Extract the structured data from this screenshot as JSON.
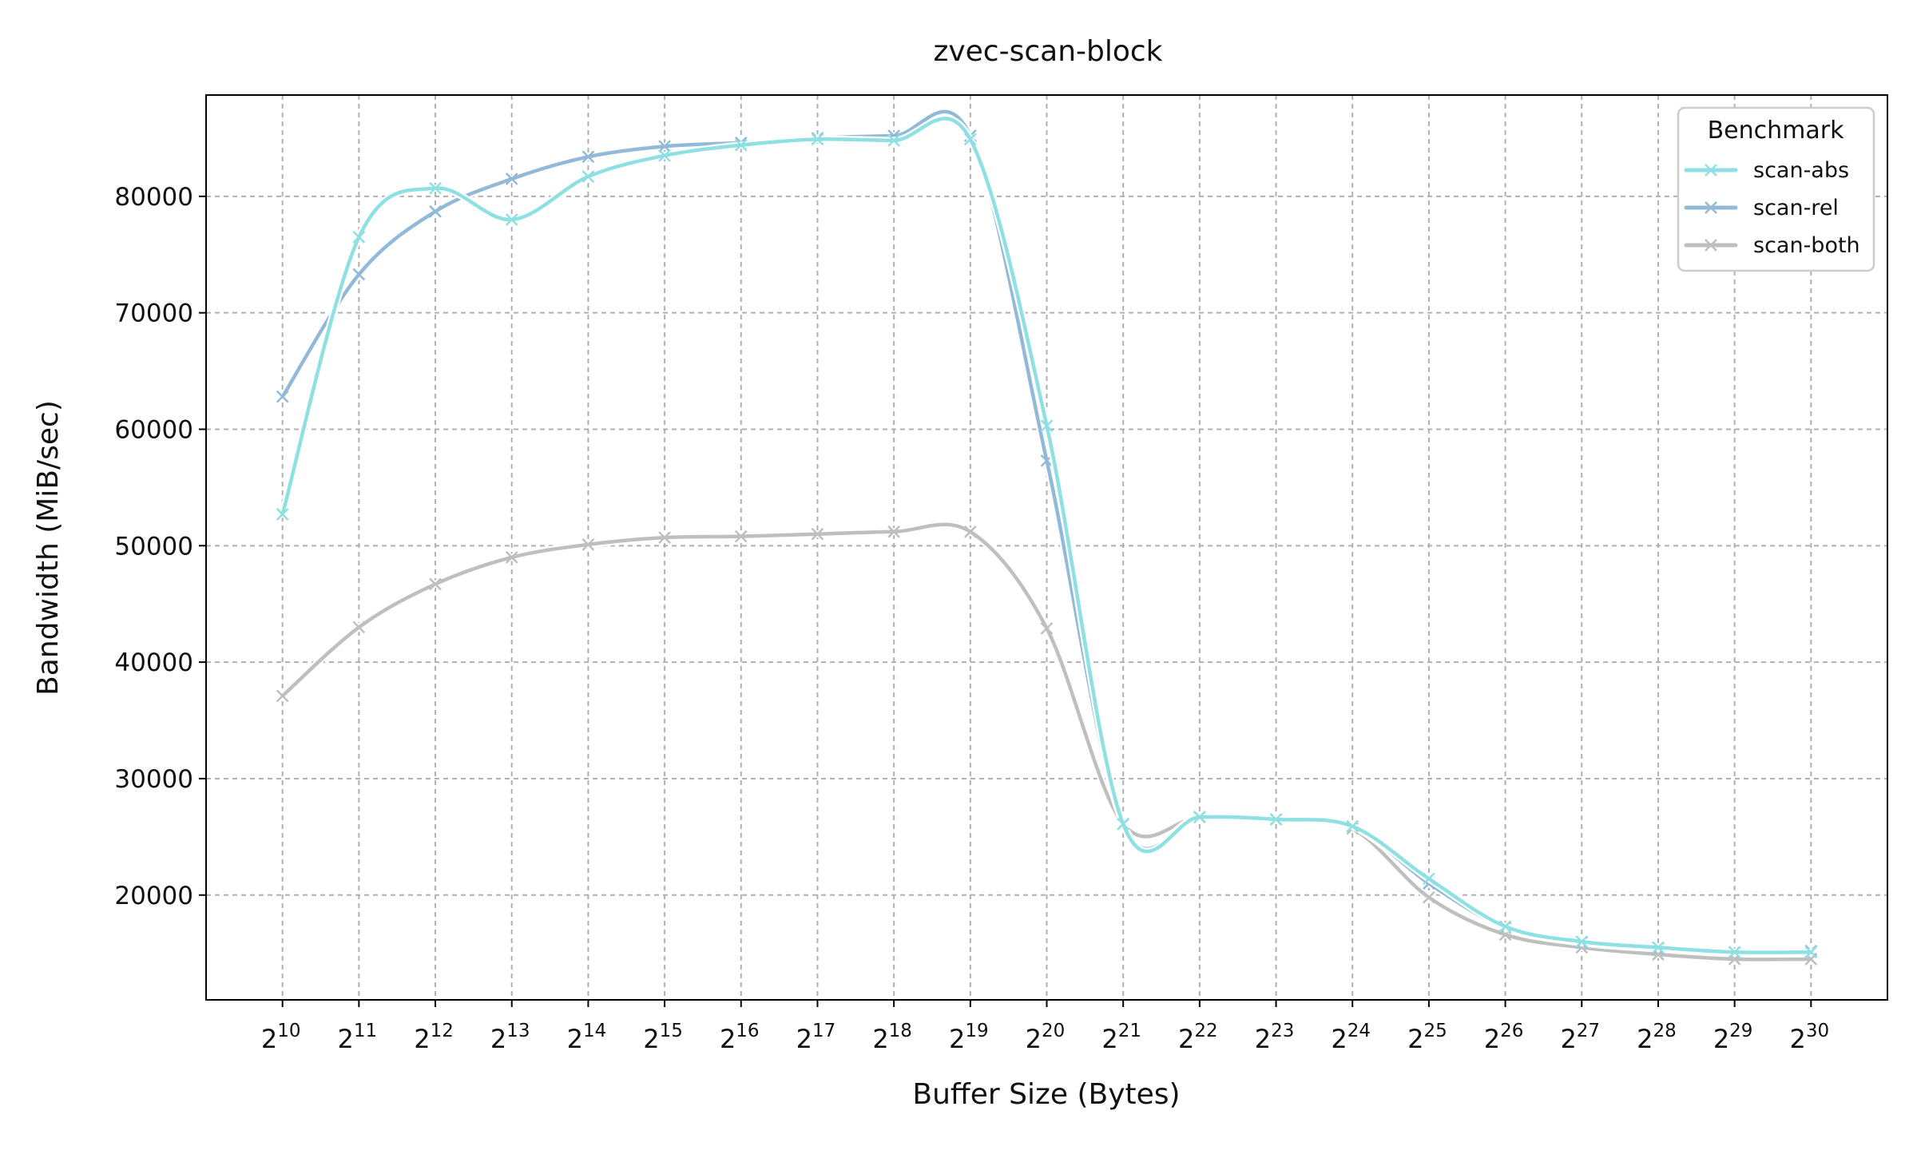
{
  "chart_data": {
    "type": "line",
    "title": "zvec-scan-block",
    "xlabel": "Buffer Size (Bytes)",
    "ylabel": "Bandwidth (MiB/sec)",
    "x_scale": "log2",
    "x_tick_base": "2",
    "x": [
      10,
      11,
      12,
      13,
      14,
      15,
      16,
      17,
      18,
      19,
      20,
      21,
      22,
      23,
      24,
      25,
      26,
      27,
      28,
      29,
      30
    ],
    "x_tick_exponents": [
      "10",
      "11",
      "12",
      "13",
      "14",
      "15",
      "16",
      "17",
      "18",
      "19",
      "20",
      "21",
      "22",
      "23",
      "24",
      "25",
      "26",
      "27",
      "28",
      "29",
      "30"
    ],
    "ylim": [
      11000,
      88700
    ],
    "y_ticks": [
      20000,
      30000,
      40000,
      50000,
      60000,
      70000,
      80000
    ],
    "y_tick_labels": [
      "20000",
      "30000",
      "40000",
      "50000",
      "60000",
      "70000",
      "80000"
    ],
    "grid": true,
    "legend": {
      "title": "Benchmark",
      "placement": "top-right"
    },
    "series": [
      {
        "name": "scan-abs",
        "color": "#8ee0e3",
        "values": [
          52700,
          76500,
          80700,
          78000,
          81700,
          83500,
          84400,
          84900,
          84800,
          84900,
          60300,
          26100,
          26700,
          26500,
          25900,
          21400,
          17300,
          16000,
          15500,
          15100,
          15100
        ]
      },
      {
        "name": "scan-rel",
        "color": "#92bad8",
        "values": [
          62800,
          73300,
          78700,
          81500,
          83400,
          84300,
          84600,
          85000,
          85200,
          85200,
          57300,
          26100,
          26700,
          26500,
          25900,
          21000,
          17200,
          15900,
          15400,
          15100,
          15200
        ]
      },
      {
        "name": "scan-both",
        "color": "#bfbfbf",
        "values": [
          37100,
          43000,
          46700,
          49000,
          50100,
          50700,
          50800,
          51000,
          51200,
          51200,
          42900,
          26100,
          26700,
          26500,
          25700,
          19800,
          16600,
          15500,
          14900,
          14500,
          14500
        ]
      }
    ]
  }
}
